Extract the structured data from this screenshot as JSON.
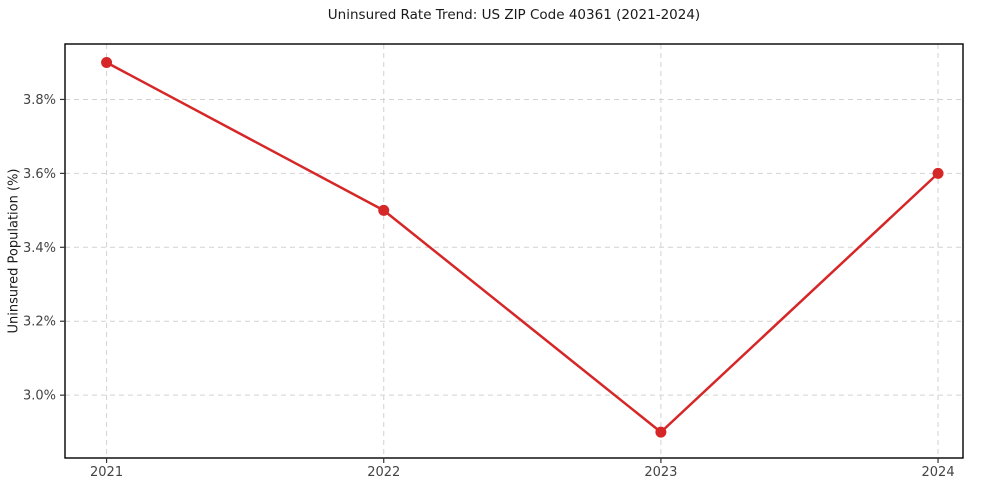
{
  "chart_data": {
    "type": "line",
    "title": "Uninsured Rate Trend: US ZIP Code 40361 (2021-2024)",
    "xlabel": "",
    "ylabel": "Uninsured Population (%)",
    "x": [
      2021,
      2022,
      2023,
      2024
    ],
    "values": [
      3.9,
      3.5,
      2.9,
      3.6
    ],
    "xtick_labels": [
      "2021",
      "2022",
      "2023",
      "2024"
    ],
    "ytick_labels": [
      "3.0%",
      "3.2%",
      "3.4%",
      "3.6%",
      "3.8%"
    ],
    "ytick_values": [
      3.0,
      3.2,
      3.4,
      3.6,
      3.8
    ],
    "xlim": [
      2020.85,
      2024.09
    ],
    "ylim": [
      2.83,
      3.95
    ],
    "grid": true,
    "grid_style": "dashed",
    "legend": "none",
    "line_color": "#d62728",
    "marker": "circle",
    "grid_color": "#d2d2d2",
    "spine_color": "#000000",
    "tick_color": "#333333",
    "tick_label_color": "#444444"
  }
}
